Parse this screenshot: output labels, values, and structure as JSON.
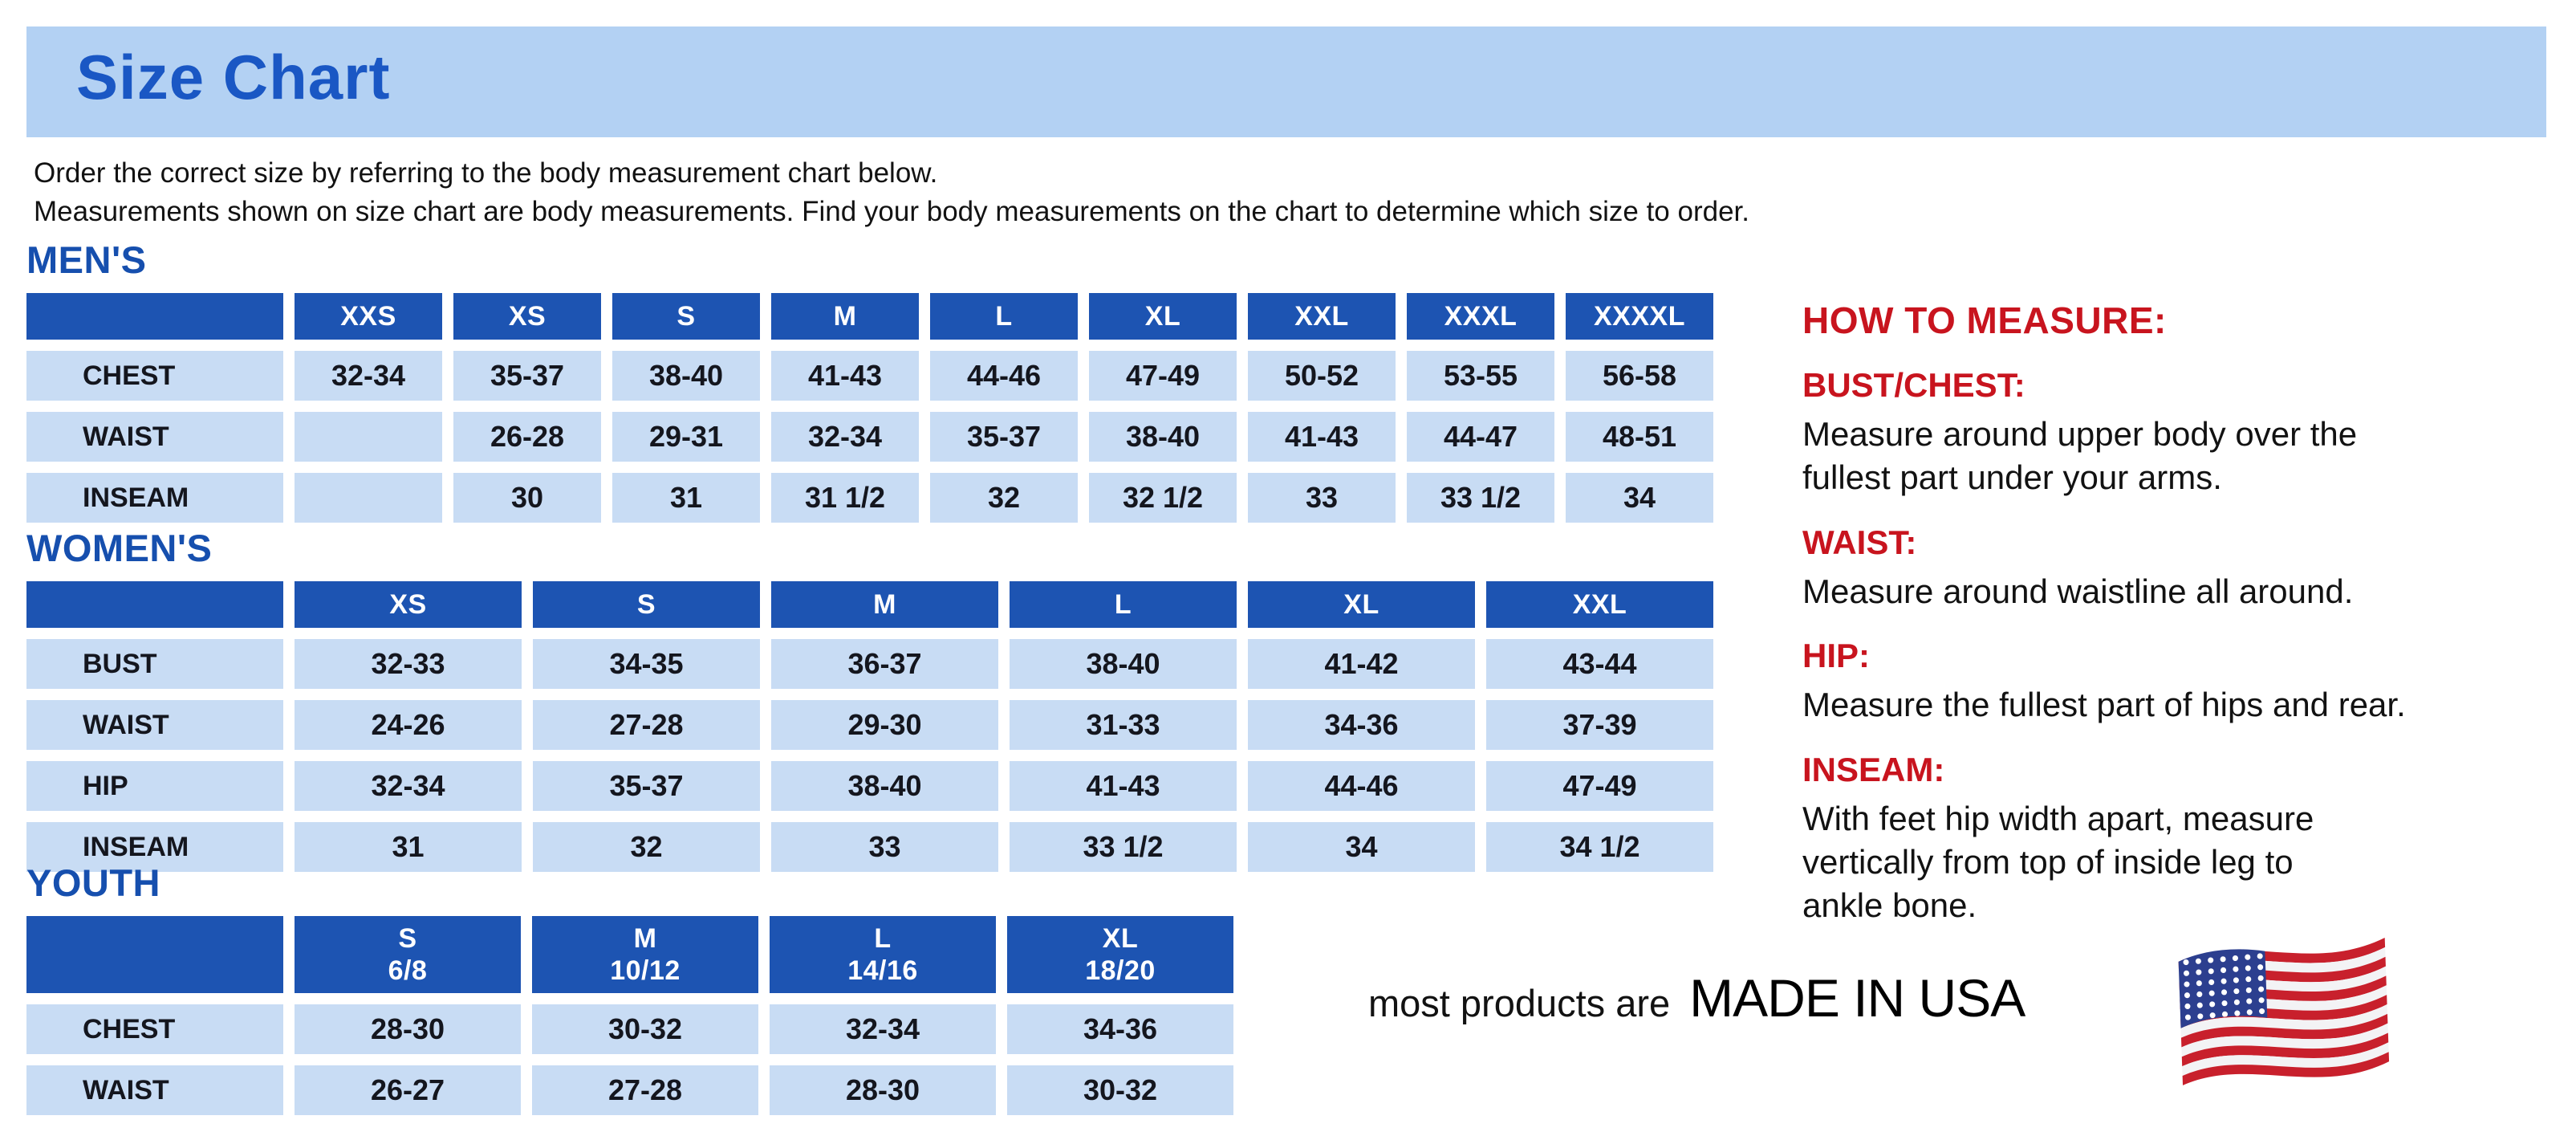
{
  "page": {
    "title": "Size Chart",
    "intro_line1": "Order the correct size by referring to the body measurement chart below.",
    "intro_line2": "Measurements shown on size chart are body measurements.  Find your body measurements on the chart to determine which size to order."
  },
  "colors": {
    "banner_blue": "#b3d1f3",
    "title_blue": "#1a57c4",
    "header_blue": "#1d54b2",
    "cell_blue": "#c8dcf4",
    "accent_red": "#c8141e",
    "flag_red": "#c8202c",
    "flag_navy": "#2c3f8f"
  },
  "tables": [
    {
      "id": "mens",
      "heading": "MEN'S",
      "columns": [
        "",
        "XXS",
        "XS",
        "S",
        "M",
        "L",
        "XL",
        "XXL",
        "XXXL",
        "XXXXL"
      ],
      "rows": [
        {
          "label": "CHEST",
          "values": [
            "32-34",
            "35-37",
            "38-40",
            "41-43",
            "44-46",
            "47-49",
            "50-52",
            "53-55",
            "56-58"
          ]
        },
        {
          "label": "WAIST",
          "values": [
            "",
            "26-28",
            "29-31",
            "32-34",
            "35-37",
            "38-40",
            "41-43",
            "44-47",
            "48-51"
          ]
        },
        {
          "label": "INSEAM",
          "values": [
            "",
            "30",
            "31",
            "31 1/2",
            "32",
            "32 1/2",
            "33",
            "33 1/2",
            "34"
          ]
        }
      ]
    },
    {
      "id": "womens",
      "heading": "WOMEN'S",
      "columns": [
        "",
        "XS",
        "S",
        "M",
        "L",
        "XL",
        "XXL"
      ],
      "rows": [
        {
          "label": "BUST",
          "values": [
            "32-33",
            "34-35",
            "36-37",
            "38-40",
            "41-42",
            "43-44"
          ]
        },
        {
          "label": "WAIST",
          "values": [
            "24-26",
            "27-28",
            "29-30",
            "31-33",
            "34-36",
            "37-39"
          ]
        },
        {
          "label": "HIP",
          "values": [
            "32-34",
            "35-37",
            "38-40",
            "41-43",
            "44-46",
            "47-49"
          ]
        },
        {
          "label": "INSEAM",
          "values": [
            "31",
            "32",
            "33",
            "33 1/2",
            "34",
            "34 1/2"
          ]
        }
      ]
    },
    {
      "id": "youth",
      "heading": "YOUTH",
      "columns": [
        "",
        "S\n6/8",
        "M\n10/12",
        "L\n14/16",
        "XL\n18/20"
      ],
      "rows": [
        {
          "label": "CHEST",
          "values": [
            "28-30",
            "30-32",
            "32-34",
            "34-36"
          ]
        },
        {
          "label": "WAIST",
          "values": [
            "26-27",
            "27-28",
            "28-30",
            "30-32"
          ]
        }
      ]
    }
  ],
  "how_to_measure": {
    "heading": "HOW TO MEASURE:",
    "items": [
      {
        "label": "BUST/CHEST:",
        "text": "Measure around upper body over the\nfullest part under your arms."
      },
      {
        "label": "WAIST:",
        "text": "Measure around waistline all around."
      },
      {
        "label": "HIP:",
        "text": "Measure the fullest part of hips and rear."
      },
      {
        "label": "INSEAM:",
        "text": "With feet hip width apart, measure\nvertically from top of inside leg to\nankle bone."
      }
    ]
  },
  "footer": {
    "prefix": "most products are",
    "made_in": "MADE IN USA",
    "flag_icon": "usa-flag-icon"
  }
}
